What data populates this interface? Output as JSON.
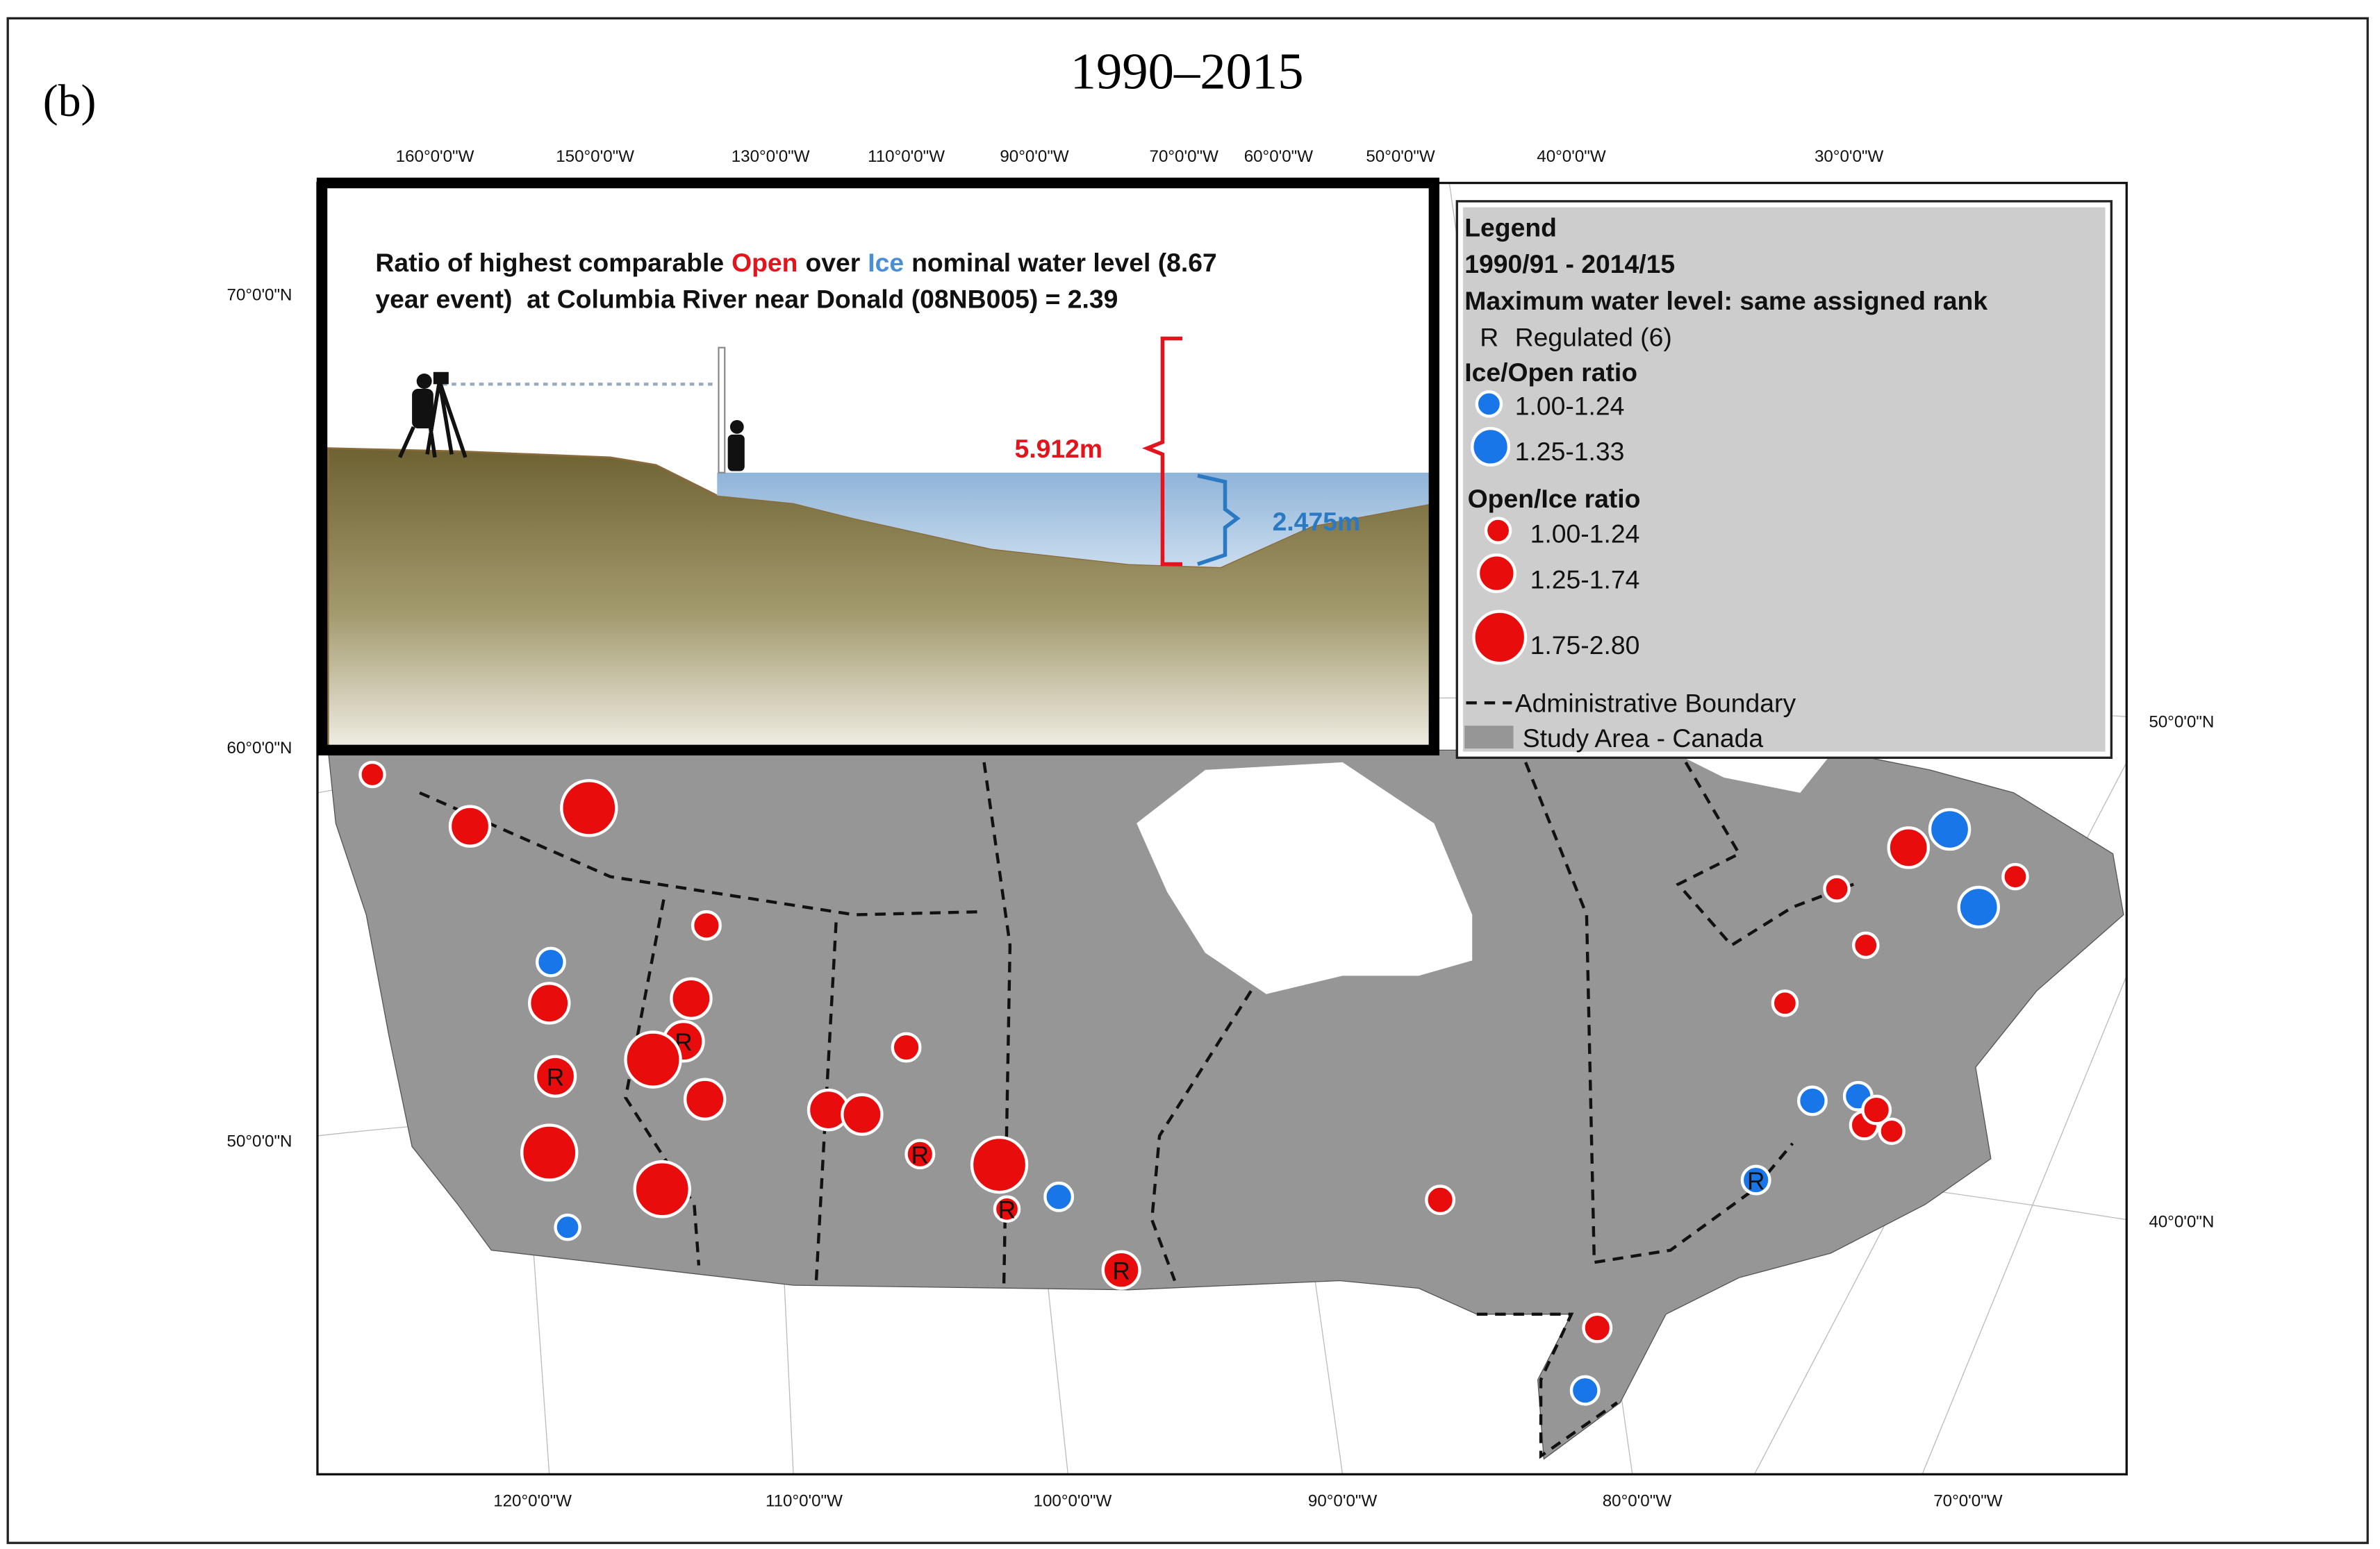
{
  "panel_label": "(b)",
  "title": "1990–2015",
  "graticule": {
    "top": [
      "160°0'0\"W",
      "150°0'0\"W",
      "130°0'0\"W",
      "110°0'0\"W",
      "90°0'0\"W",
      "70°0'0\"W",
      "60°0'0\"W",
      "50°0'0\"W",
      "40°0'0\"W",
      "30°0'0\"W"
    ],
    "bottom": [
      "120°0'0\"W",
      "110°0'0\"W",
      "100°0'0\"W",
      "90°0'0\"W",
      "80°0'0\"W",
      "70°0'0\"W"
    ],
    "left": [
      "70°0'0\"N",
      "60°0'0\"N",
      "50°0'0\"N"
    ],
    "right": [
      "50°0'0\"N",
      "40°0'0\"N"
    ]
  },
  "inset": {
    "line1": [
      "Ratio of highest comparable",
      "Open",
      "over",
      "Ice",
      "nominal water level (8.67"
    ],
    "line2": "year event)  at Columbia River near Donald (08NB005) = 2.39",
    "open_level": "5.912m",
    "ice_level": "2.475m"
  },
  "legend": {
    "title": "Legend",
    "period": "1990/91 - 2014/15",
    "subtitle": "Maximum water level: same assigned rank",
    "regulated_symbol": "R",
    "regulated_label": "Regulated (6)",
    "ice_open_heading": "Ice/Open ratio",
    "ice_open_classes": [
      "1.00-1.24",
      "1.25-1.33"
    ],
    "open_ice_heading": "Open/Ice ratio",
    "open_ice_classes": [
      "1.00-1.24",
      "1.25-1.74",
      "1.75-2.80"
    ],
    "boundary": "Administrative Boundary",
    "study_area": "Study Area - Canada"
  }
}
